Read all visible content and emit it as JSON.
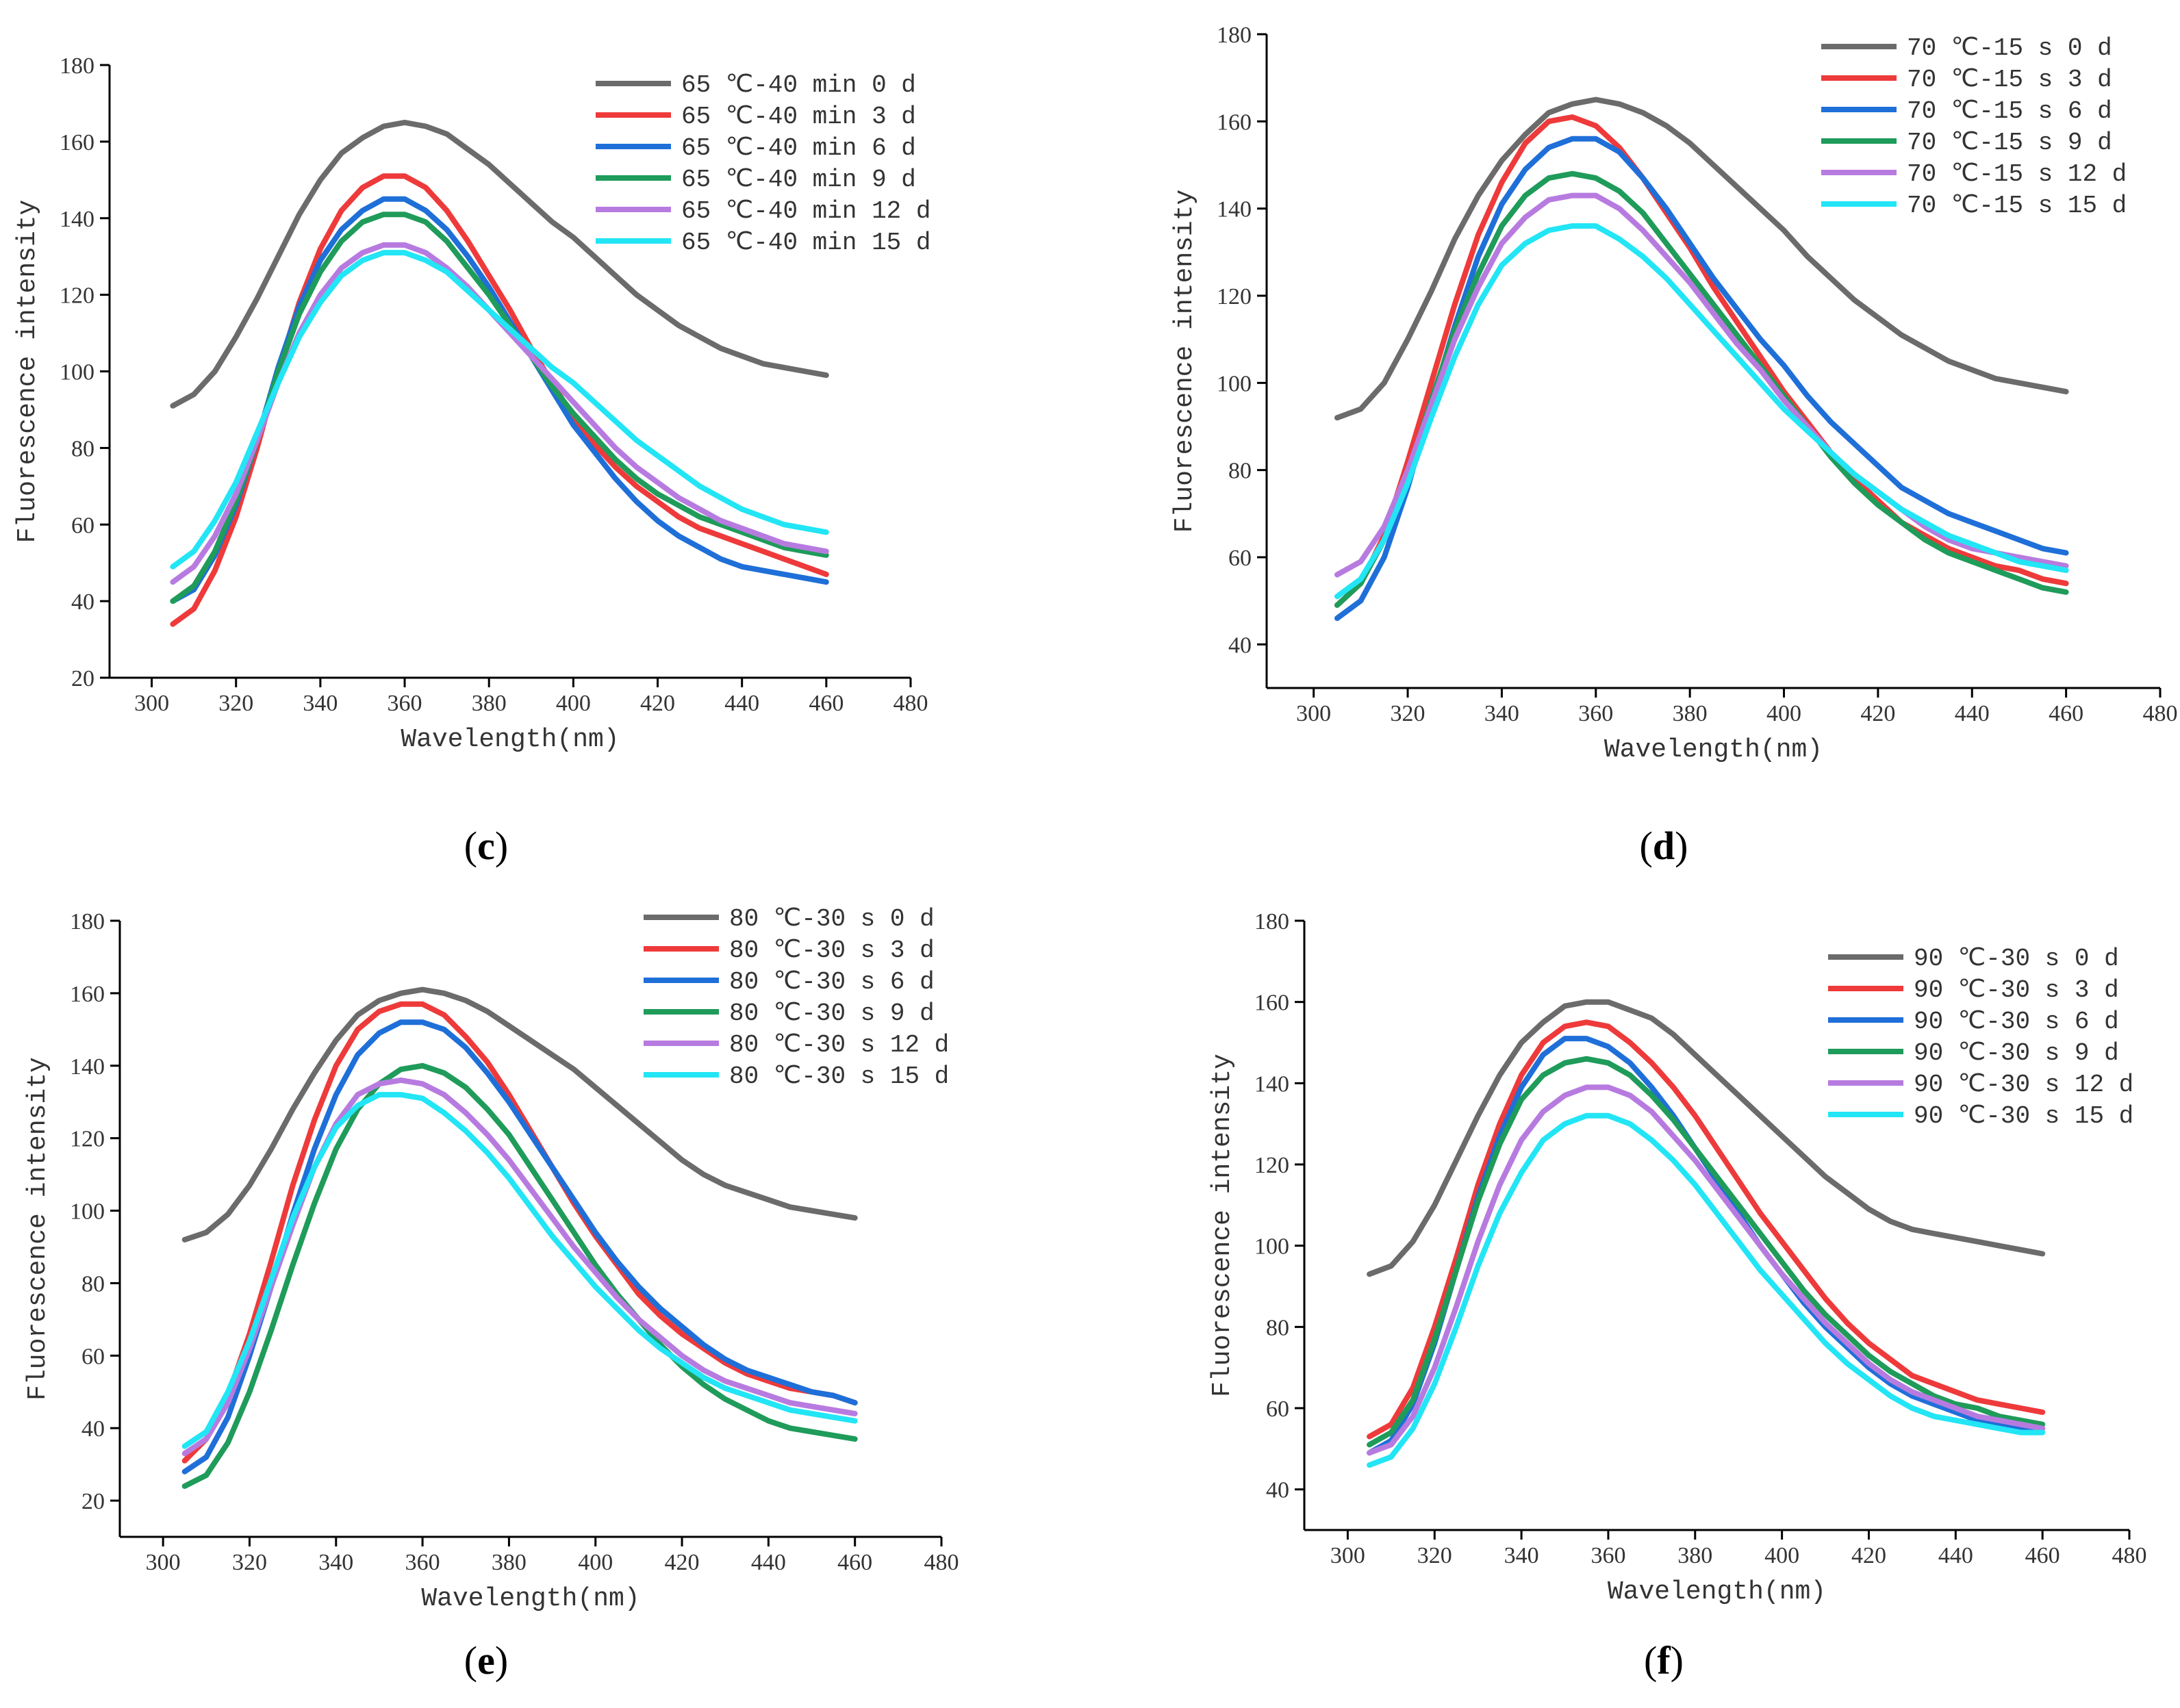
{
  "chart_data": [
    {
      "type": "line",
      "title": "",
      "caption": "(c)",
      "xlabel": "Wavelength(nm)",
      "ylabel": "Fluorescence intensity",
      "xlim": [
        290,
        480
      ],
      "ylim": [
        20,
        180
      ],
      "xticks": [
        300,
        320,
        340,
        360,
        380,
        400,
        420,
        440,
        460,
        480
      ],
      "yticks": [
        20,
        40,
        60,
        80,
        100,
        120,
        140,
        160,
        180
      ],
      "x": [
        305,
        310,
        315,
        320,
        325,
        330,
        335,
        340,
        345,
        350,
        355,
        360,
        365,
        370,
        375,
        380,
        385,
        390,
        395,
        400,
        405,
        410,
        415,
        420,
        425,
        430,
        435,
        440,
        445,
        450,
        455,
        460
      ],
      "series": [
        {
          "name": "65 ℃-40 min 0 d",
          "color": "#6b6b6b",
          "values": [
            91,
            94,
            100,
            109,
            119,
            130,
            141,
            150,
            157,
            161,
            164,
            165,
            164,
            162,
            158,
            154,
            149,
            144,
            139,
            135,
            130,
            125,
            120,
            116,
            112,
            109,
            106,
            104,
            102,
            101,
            100,
            99
          ]
        },
        {
          "name": "65 ℃-40 min 3 d",
          "color": "#ee3a3a",
          "values": [
            34,
            38,
            48,
            62,
            80,
            100,
            118,
            132,
            142,
            148,
            151,
            151,
            148,
            142,
            134,
            125,
            116,
            106,
            97,
            88,
            81,
            75,
            70,
            66,
            62,
            59,
            57,
            55,
            53,
            51,
            49,
            47
          ]
        },
        {
          "name": "65 ℃-40 min 6 d",
          "color": "#1f6fd8",
          "values": [
            40,
            43,
            52,
            65,
            82,
            101,
            117,
            129,
            137,
            142,
            145,
            145,
            142,
            137,
            130,
            122,
            113,
            104,
            95,
            86,
            79,
            72,
            66,
            61,
            57,
            54,
            51,
            49,
            48,
            47,
            46,
            45
          ]
        },
        {
          "name": "65 ℃-40 min 9 d",
          "color": "#1f9b5a",
          "values": [
            40,
            44,
            53,
            66,
            82,
            100,
            115,
            126,
            134,
            139,
            141,
            141,
            139,
            134,
            127,
            120,
            112,
            104,
            96,
            89,
            83,
            77,
            72,
            68,
            65,
            62,
            60,
            58,
            56,
            54,
            53,
            52
          ]
        },
        {
          "name": "65 ℃-40 min 12 d",
          "color": "#b77be0",
          "values": [
            45,
            49,
            57,
            68,
            82,
            97,
            110,
            120,
            127,
            131,
            133,
            133,
            131,
            127,
            122,
            116,
            110,
            104,
            98,
            92,
            86,
            80,
            75,
            71,
            67,
            64,
            61,
            59,
            57,
            55,
            54,
            53
          ]
        },
        {
          "name": "65 ℃-40 min 15 d",
          "color": "#22e5f5",
          "values": [
            49,
            53,
            61,
            71,
            84,
            97,
            109,
            118,
            125,
            129,
            131,
            131,
            129,
            126,
            121,
            116,
            111,
            106,
            101,
            97,
            92,
            87,
            82,
            78,
            74,
            70,
            67,
            64,
            62,
            60,
            59,
            58
          ]
        }
      ]
    },
    {
      "type": "line",
      "title": "",
      "caption": "(d)",
      "xlabel": "Wavelength(nm)",
      "ylabel": "Fluorescence intensity",
      "xlim": [
        290,
        480
      ],
      "ylim": [
        30,
        180
      ],
      "xticks": [
        300,
        320,
        340,
        360,
        380,
        400,
        420,
        440,
        460,
        480
      ],
      "yticks": [
        40,
        60,
        80,
        100,
        120,
        140,
        160,
        180
      ],
      "x": [
        305,
        310,
        315,
        320,
        325,
        330,
        335,
        340,
        345,
        350,
        355,
        360,
        365,
        370,
        375,
        380,
        385,
        390,
        395,
        400,
        405,
        410,
        415,
        420,
        425,
        430,
        435,
        440,
        445,
        450,
        455,
        460
      ],
      "series": [
        {
          "name": "70 ℃-15 s 0 d",
          "color": "#6b6b6b",
          "values": [
            92,
            94,
            100,
            110,
            121,
            133,
            143,
            151,
            157,
            162,
            164,
            165,
            164,
            162,
            159,
            155,
            150,
            145,
            140,
            135,
            129,
            124,
            119,
            115,
            111,
            108,
            105,
            103,
            101,
            100,
            99,
            98
          ]
        },
        {
          "name": "70 ℃-15 s 3 d",
          "color": "#ee3a3a",
          "values": [
            49,
            54,
            65,
            82,
            100,
            118,
            134,
            146,
            155,
            160,
            161,
            159,
            154,
            147,
            139,
            131,
            122,
            114,
            106,
            98,
            91,
            84,
            78,
            73,
            68,
            65,
            62,
            60,
            58,
            57,
            55,
            54
          ]
        },
        {
          "name": "70 ℃-15 s 6 d",
          "color": "#1f6fd8",
          "values": [
            46,
            50,
            60,
            76,
            95,
            113,
            129,
            141,
            149,
            154,
            156,
            156,
            153,
            147,
            140,
            132,
            124,
            117,
            110,
            104,
            97,
            91,
            86,
            81,
            76,
            73,
            70,
            68,
            66,
            64,
            62,
            61
          ]
        },
        {
          "name": "70 ℃-15 s 9 d",
          "color": "#1f9b5a",
          "values": [
            49,
            54,
            64,
            79,
            96,
            112,
            125,
            136,
            143,
            147,
            148,
            147,
            144,
            139,
            132,
            125,
            118,
            111,
            104,
            97,
            90,
            83,
            77,
            72,
            68,
            64,
            61,
            59,
            57,
            55,
            53,
            52
          ]
        },
        {
          "name": "70 ℃-15 s 12 d",
          "color": "#b77be0",
          "values": [
            56,
            59,
            67,
            80,
            95,
            110,
            122,
            132,
            138,
            142,
            143,
            143,
            140,
            135,
            129,
            123,
            116,
            109,
            103,
            96,
            90,
            84,
            79,
            75,
            71,
            67,
            64,
            62,
            61,
            60,
            59,
            58
          ]
        },
        {
          "name": "70 ℃-15 s 15 d",
          "color": "#22e5f5",
          "values": [
            51,
            55,
            64,
            77,
            92,
            106,
            118,
            127,
            132,
            135,
            136,
            136,
            133,
            129,
            124,
            118,
            112,
            106,
            100,
            94,
            89,
            84,
            79,
            75,
            71,
            68,
            65,
            63,
            61,
            59,
            58,
            57
          ]
        }
      ]
    },
    {
      "type": "line",
      "title": "",
      "caption": "(e)",
      "xlabel": "Wavelength(nm)",
      "ylabel": "Fluorescence intensity",
      "xlim": [
        290,
        480
      ],
      "ylim": [
        10,
        180
      ],
      "xticks": [
        300,
        320,
        340,
        360,
        380,
        400,
        420,
        440,
        460,
        480
      ],
      "yticks": [
        20,
        40,
        60,
        80,
        100,
        120,
        140,
        160,
        180
      ],
      "x": [
        305,
        310,
        315,
        320,
        325,
        330,
        335,
        340,
        345,
        350,
        355,
        360,
        365,
        370,
        375,
        380,
        385,
        390,
        395,
        400,
        405,
        410,
        415,
        420,
        425,
        430,
        435,
        440,
        445,
        450,
        455,
        460
      ],
      "series": [
        {
          "name": "80 ℃-30 s 0 d",
          "color": "#6b6b6b",
          "values": [
            92,
            94,
            99,
            107,
            117,
            128,
            138,
            147,
            154,
            158,
            160,
            161,
            160,
            158,
            155,
            151,
            147,
            143,
            139,
            134,
            129,
            124,
            119,
            114,
            110,
            107,
            105,
            103,
            101,
            100,
            99,
            98
          ]
        },
        {
          "name": "80 ℃-30 s 3 d",
          "color": "#ee3a3a",
          "values": [
            31,
            37,
            49,
            66,
            86,
            107,
            125,
            140,
            150,
            155,
            157,
            157,
            154,
            148,
            141,
            132,
            122,
            112,
            102,
            93,
            85,
            77,
            71,
            66,
            62,
            58,
            55,
            53,
            51,
            50,
            49,
            47
          ]
        },
        {
          "name": "80 ℃-30 s 6 d",
          "color": "#1f6fd8",
          "values": [
            28,
            32,
            43,
            60,
            79,
            99,
            117,
            132,
            143,
            149,
            152,
            152,
            150,
            145,
            138,
            130,
            121,
            112,
            103,
            94,
            86,
            79,
            73,
            68,
            63,
            59,
            56,
            54,
            52,
            50,
            49,
            47
          ]
        },
        {
          "name": "80 ℃-30 s 9 d",
          "color": "#1f9b5a",
          "values": [
            24,
            27,
            36,
            50,
            67,
            85,
            102,
            117,
            128,
            135,
            139,
            140,
            138,
            134,
            128,
            121,
            112,
            103,
            94,
            85,
            77,
            70,
            63,
            57,
            52,
            48,
            45,
            42,
            40,
            39,
            38,
            37
          ]
        },
        {
          "name": "80 ℃-30 s 12 d",
          "color": "#b77be0",
          "values": [
            33,
            37,
            47,
            62,
            79,
            96,
            112,
            124,
            132,
            135,
            136,
            135,
            132,
            127,
            121,
            114,
            106,
            98,
            90,
            83,
            76,
            70,
            65,
            60,
            56,
            53,
            51,
            49,
            47,
            46,
            45,
            44
          ]
        },
        {
          "name": "80 ℃-30 s 15 d",
          "color": "#22e5f5",
          "values": [
            35,
            39,
            50,
            64,
            81,
            98,
            112,
            123,
            129,
            132,
            132,
            131,
            127,
            122,
            116,
            109,
            101,
            93,
            86,
            79,
            73,
            67,
            62,
            58,
            54,
            51,
            49,
            47,
            45,
            44,
            43,
            42
          ]
        }
      ]
    },
    {
      "type": "line",
      "title": "",
      "caption": "(f)",
      "xlabel": "Wavelength(nm)",
      "ylabel": "Fluorescence intensity",
      "xlim": [
        290,
        480
      ],
      "ylim": [
        30,
        180
      ],
      "xticks": [
        300,
        320,
        340,
        360,
        380,
        400,
        420,
        440,
        460,
        480
      ],
      "yticks": [
        40,
        60,
        80,
        100,
        120,
        140,
        160,
        180
      ],
      "x": [
        305,
        310,
        315,
        320,
        325,
        330,
        335,
        340,
        345,
        350,
        355,
        360,
        365,
        370,
        375,
        380,
        385,
        390,
        395,
        400,
        405,
        410,
        415,
        420,
        425,
        430,
        435,
        440,
        445,
        450,
        455,
        460
      ],
      "series": [
        {
          "name": "90 ℃-30 s 0 d",
          "color": "#6b6b6b",
          "values": [
            93,
            95,
            101,
            110,
            121,
            132,
            142,
            150,
            155,
            159,
            160,
            160,
            158,
            156,
            152,
            147,
            142,
            137,
            132,
            127,
            122,
            117,
            113,
            109,
            106,
            104,
            103,
            102,
            101,
            100,
            99,
            98
          ]
        },
        {
          "name": "90 ℃-30 s 3 d",
          "color": "#ee3a3a",
          "values": [
            53,
            56,
            65,
            80,
            97,
            115,
            130,
            142,
            150,
            154,
            155,
            154,
            150,
            145,
            139,
            132,
            124,
            116,
            108,
            101,
            94,
            87,
            81,
            76,
            72,
            68,
            66,
            64,
            62,
            61,
            60,
            59
          ]
        },
        {
          "name": "90 ℃-30 s 6 d",
          "color": "#1f6fd8",
          "values": [
            49,
            52,
            61,
            76,
            94,
            112,
            127,
            139,
            147,
            151,
            151,
            149,
            145,
            139,
            132,
            124,
            116,
            108,
            100,
            93,
            86,
            80,
            75,
            70,
            66,
            63,
            61,
            59,
            57,
            56,
            55,
            55
          ]
        },
        {
          "name": "90 ℃-30 s 9 d",
          "color": "#1f9b5a",
          "values": [
            51,
            54,
            62,
            77,
            94,
            111,
            125,
            136,
            142,
            145,
            146,
            145,
            142,
            137,
            131,
            124,
            117,
            110,
            103,
            96,
            89,
            83,
            78,
            73,
            69,
            66,
            63,
            61,
            60,
            58,
            57,
            56
          ]
        },
        {
          "name": "90 ℃-30 s 12 d",
          "color": "#b77be0",
          "values": [
            49,
            51,
            58,
            70,
            85,
            101,
            115,
            126,
            133,
            137,
            139,
            139,
            137,
            133,
            127,
            121,
            114,
            107,
            100,
            93,
            87,
            81,
            76,
            71,
            67,
            64,
            62,
            60,
            58,
            57,
            56,
            55
          ]
        },
        {
          "name": "90 ℃-30 s 15 d",
          "color": "#22e5f5",
          "values": [
            46,
            48,
            55,
            66,
            80,
            95,
            108,
            118,
            126,
            130,
            132,
            132,
            130,
            126,
            121,
            115,
            108,
            101,
            94,
            88,
            82,
            76,
            71,
            67,
            63,
            60,
            58,
            57,
            56,
            55,
            54,
            54
          ]
        }
      ]
    }
  ]
}
